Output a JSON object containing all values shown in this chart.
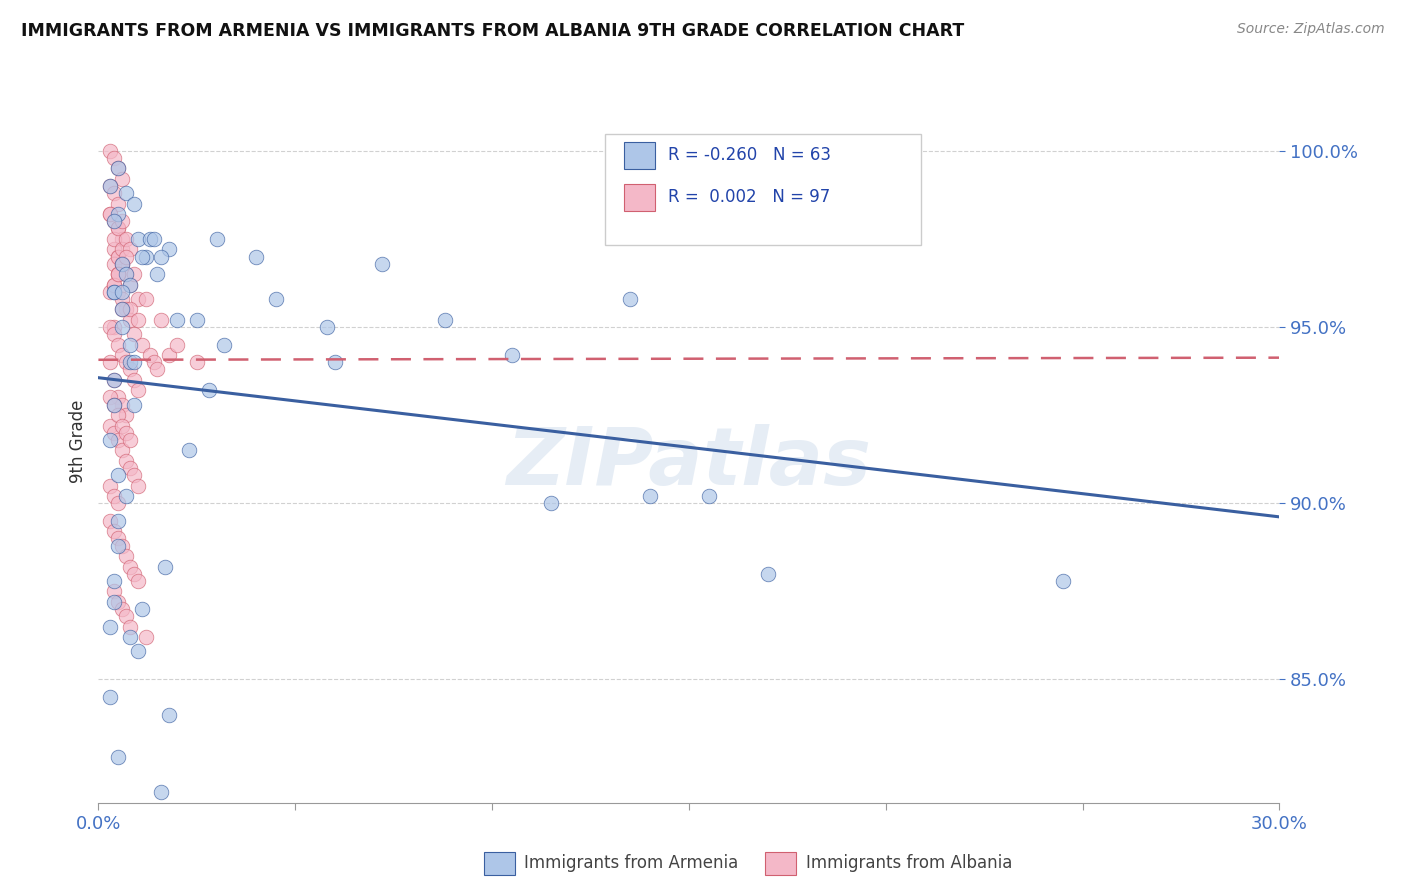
{
  "title": "IMMIGRANTS FROM ARMENIA VS IMMIGRANTS FROM ALBANIA 9TH GRADE CORRELATION CHART",
  "source": "Source: ZipAtlas.com",
  "ylabel": "9th Grade",
  "xlim": [
    0.0,
    30.0
  ],
  "ylim": [
    81.5,
    102.0
  ],
  "color_armenia": "#aec6e8",
  "color_albania": "#f4b8c8",
  "color_line_armenia": "#3a5fa0",
  "color_line_albania": "#d06070",
  "grid_color": "#cccccc",
  "background_color": "#ffffff",
  "watermark_text": "ZIPatlas",
  "watermark_color": "#c8d8ea",
  "watermark_alpha": 0.45,
  "armenia_scatter_x": [
    0.3,
    0.5,
    0.5,
    0.7,
    0.9,
    1.0,
    1.2,
    1.5,
    1.8,
    0.4,
    0.4,
    0.6,
    0.8,
    1.1,
    1.6,
    2.0,
    1.3,
    0.8,
    0.6,
    0.4,
    0.3,
    0.5,
    0.7,
    0.4,
    0.6,
    0.9,
    1.4,
    0.8,
    0.5,
    1.7,
    0.4,
    2.3,
    0.7,
    0.3,
    4.5,
    5.8,
    7.2,
    8.8,
    6.0,
    3.2,
    10.5,
    13.5,
    0.5,
    0.4,
    0.8,
    1.0,
    0.3,
    1.8,
    1.1,
    0.9,
    2.5,
    4.0,
    14.0,
    24.5,
    0.6,
    3.0,
    15.5,
    0.4,
    0.5,
    1.6,
    2.8,
    11.5,
    17.0
  ],
  "armenia_scatter_y": [
    99.0,
    99.5,
    98.2,
    98.8,
    98.5,
    97.5,
    97.0,
    96.5,
    97.2,
    98.0,
    96.0,
    95.5,
    94.5,
    97.0,
    97.0,
    95.2,
    97.5,
    94.0,
    96.8,
    92.8,
    91.8,
    90.8,
    96.5,
    96.0,
    95.0,
    94.0,
    97.5,
    96.2,
    89.5,
    88.2,
    87.2,
    91.5,
    90.2,
    86.5,
    95.8,
    95.0,
    96.8,
    95.2,
    94.0,
    94.5,
    94.2,
    95.8,
    88.8,
    87.8,
    86.2,
    85.8,
    84.5,
    84.0,
    87.0,
    92.8,
    95.2,
    97.0,
    90.2,
    87.8,
    96.0,
    97.5,
    90.2,
    93.5,
    82.8,
    81.8,
    93.2,
    90.0,
    88.0
  ],
  "albania_scatter_x": [
    0.3,
    0.4,
    0.5,
    0.6,
    0.3,
    0.4,
    0.5,
    0.3,
    0.4,
    0.5,
    0.6,
    0.4,
    0.5,
    0.6,
    0.7,
    0.8,
    0.5,
    0.6,
    0.7,
    0.8,
    0.4,
    0.5,
    0.6,
    0.3,
    0.4,
    0.5,
    0.6,
    0.3,
    0.4,
    0.5,
    0.6,
    0.7,
    0.8,
    0.9,
    1.0,
    0.4,
    0.5,
    0.6,
    0.7,
    0.8,
    0.9,
    1.0,
    1.1,
    1.2,
    1.3,
    1.4,
    1.5,
    1.6,
    1.8,
    0.3,
    0.4,
    0.5,
    0.6,
    0.7,
    0.3,
    0.4,
    0.5,
    0.6,
    0.7,
    0.8,
    0.9,
    1.0,
    0.3,
    0.4,
    0.5,
    0.6,
    0.7,
    0.8,
    0.9,
    1.0,
    0.3,
    0.4,
    0.5,
    0.6,
    0.7,
    0.8,
    0.3,
    0.4,
    0.5,
    0.3,
    0.4,
    0.5,
    0.6,
    0.7,
    0.8,
    0.9,
    1.0,
    0.4,
    0.5,
    0.6,
    0.7,
    0.8,
    1.2,
    0.4,
    0.5,
    2.0,
    2.5
  ],
  "albania_scatter_y": [
    100.0,
    99.8,
    99.5,
    99.2,
    99.0,
    98.8,
    98.5,
    98.2,
    98.0,
    97.8,
    97.5,
    97.2,
    97.0,
    96.8,
    96.5,
    96.2,
    96.0,
    95.8,
    95.5,
    95.2,
    97.5,
    97.8,
    98.0,
    98.2,
    96.8,
    97.0,
    97.2,
    96.0,
    96.2,
    96.5,
    96.8,
    97.5,
    97.2,
    96.5,
    95.8,
    95.0,
    96.5,
    95.5,
    97.0,
    95.5,
    94.8,
    95.2,
    94.5,
    95.8,
    94.2,
    94.0,
    93.8,
    95.2,
    94.2,
    94.0,
    93.5,
    93.0,
    92.8,
    92.5,
    92.2,
    92.0,
    91.8,
    91.5,
    91.2,
    91.0,
    90.8,
    90.5,
    95.0,
    94.8,
    94.5,
    94.2,
    94.0,
    93.8,
    93.5,
    93.2,
    93.0,
    92.8,
    92.5,
    92.2,
    92.0,
    91.8,
    90.5,
    90.2,
    90.0,
    89.5,
    89.2,
    89.0,
    88.8,
    88.5,
    88.2,
    88.0,
    87.8,
    87.5,
    87.2,
    87.0,
    86.8,
    86.5,
    86.2,
    96.2,
    96.5,
    94.5,
    94.0
  ]
}
